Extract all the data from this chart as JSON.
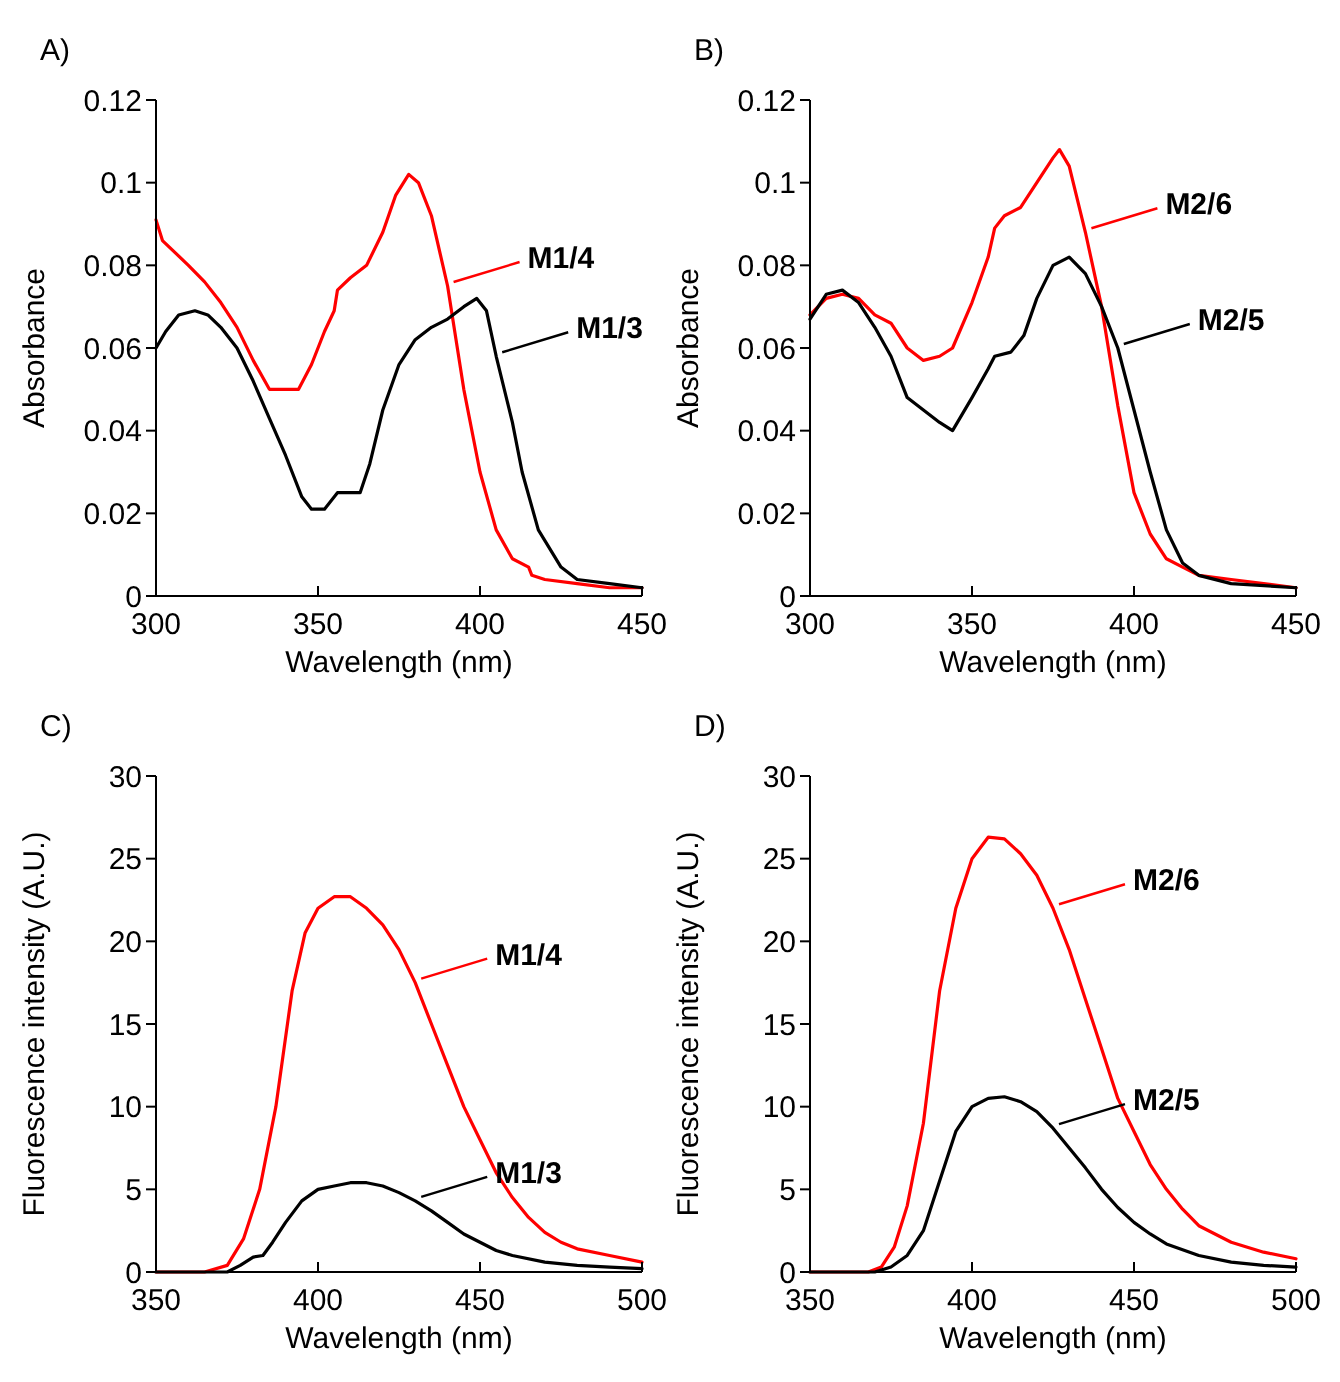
{
  "chart_data": [
    {
      "type": "line",
      "title": "A)",
      "xlabel": "Wavelength (nm)",
      "ylabel": "Absorbance",
      "xlim": [
        300,
        450
      ],
      "xticks": [
        300,
        350,
        400,
        450
      ],
      "ylim": [
        0,
        0.12
      ],
      "yticks": [
        0,
        0.02,
        0.04,
        0.06,
        0.08,
        {
          "value": 0.1,
          "label": "0.1"
        },
        0.12
      ],
      "grid": false,
      "legend": "right",
      "series": [
        {
          "name": "M1/4",
          "color": "#ff0000",
          "x": [
            300,
            302,
            310,
            315,
            320,
            325,
            330,
            335,
            340,
            344,
            348,
            352,
            355,
            356,
            360,
            365,
            370,
            374,
            378,
            381,
            385,
            390,
            395,
            400,
            405,
            410,
            415,
            416,
            420,
            430,
            440,
            450
          ],
          "values": [
            0.091,
            0.086,
            0.08,
            0.076,
            0.071,
            0.065,
            0.057,
            0.05,
            0.05,
            0.05,
            0.056,
            0.064,
            0.069,
            0.074,
            0.077,
            0.08,
            0.088,
            0.097,
            0.102,
            0.1,
            0.092,
            0.075,
            0.05,
            0.03,
            0.016,
            0.009,
            0.007,
            0.005,
            0.004,
            0.003,
            0.002,
            0.002
          ]
        },
        {
          "name": "M1/3",
          "color": "#000000",
          "x": [
            300,
            303,
            307,
            312,
            316,
            320,
            325,
            330,
            335,
            340,
            345,
            348,
            352,
            356,
            360,
            363,
            366,
            370,
            375,
            380,
            385,
            390,
            395,
            399,
            402,
            405,
            410,
            413,
            418,
            425,
            430,
            440,
            450
          ],
          "values": [
            0.06,
            0.064,
            0.068,
            0.069,
            0.068,
            0.065,
            0.06,
            0.052,
            0.043,
            0.034,
            0.024,
            0.021,
            0.021,
            0.025,
            0.025,
            0.025,
            0.032,
            0.045,
            0.056,
            0.062,
            0.065,
            0.067,
            0.07,
            0.072,
            0.069,
            0.058,
            0.042,
            0.03,
            0.016,
            0.007,
            0.004,
            0.003,
            0.002
          ]
        }
      ]
    },
    {
      "type": "line",
      "title": "B)",
      "xlabel": "Wavelength (nm)",
      "ylabel": "Absorbance",
      "xlim": [
        300,
        450
      ],
      "xticks": [
        300,
        350,
        400,
        450
      ],
      "ylim": [
        0,
        0.12
      ],
      "yticks": [
        0,
        0.02,
        0.04,
        0.06,
        0.08,
        {
          "value": 0.1,
          "label": "0.1"
        },
        0.12
      ],
      "grid": false,
      "legend": "right",
      "series": [
        {
          "name": "M2/6",
          "color": "#ff0000",
          "x": [
            300,
            305,
            310,
            315,
            320,
            325,
            330,
            335,
            340,
            344,
            350,
            355,
            357,
            360,
            365,
            370,
            375,
            377,
            380,
            385,
            390,
            395,
            400,
            405,
            410,
            415,
            420,
            430,
            450
          ],
          "values": [
            0.068,
            0.072,
            0.073,
            0.072,
            0.068,
            0.066,
            0.06,
            0.057,
            0.058,
            0.06,
            0.071,
            0.082,
            0.089,
            0.092,
            0.094,
            0.1,
            0.106,
            0.108,
            0.104,
            0.088,
            0.07,
            0.046,
            0.025,
            0.015,
            0.009,
            0.007,
            0.005,
            0.004,
            0.002
          ]
        },
        {
          "name": "M2/5",
          "color": "#000000",
          "x": [
            300,
            305,
            310,
            315,
            320,
            325,
            330,
            335,
            340,
            344,
            350,
            355,
            357,
            362,
            366,
            370,
            375,
            380,
            385,
            390,
            395,
            400,
            405,
            410,
            415,
            420,
            430,
            450
          ],
          "values": [
            0.067,
            0.073,
            0.074,
            0.071,
            0.065,
            0.058,
            0.048,
            0.045,
            0.042,
            0.04,
            0.048,
            0.055,
            0.058,
            0.059,
            0.063,
            0.072,
            0.08,
            0.082,
            0.078,
            0.07,
            0.06,
            0.045,
            0.03,
            0.016,
            0.008,
            0.005,
            0.003,
            0.002
          ]
        }
      ]
    },
    {
      "type": "line",
      "title": "C)",
      "xlabel": "Wavelength (nm)",
      "ylabel": "Fluorescence intensity (A.U.)",
      "xlim": [
        350,
        500
      ],
      "xticks": [
        350,
        400,
        450,
        500
      ],
      "ylim": [
        0,
        30
      ],
      "yticks": [
        0,
        5,
        10,
        15,
        20,
        25,
        30
      ],
      "grid": false,
      "legend": "right",
      "series": [
        {
          "name": "M1/4",
          "color": "#ff0000",
          "x": [
            350,
            365,
            372,
            377,
            382,
            387,
            392,
            396,
            400,
            405,
            410,
            415,
            420,
            425,
            430,
            435,
            440,
            445,
            450,
            455,
            460,
            465,
            470,
            475,
            480,
            490,
            500
          ],
          "values": [
            0,
            0,
            0.4,
            2,
            5,
            10,
            17,
            20.5,
            22,
            22.7,
            22.7,
            22,
            21,
            19.5,
            17.5,
            15,
            12.5,
            10,
            8,
            6,
            4.5,
            3.3,
            2.4,
            1.8,
            1.4,
            1,
            0.6
          ]
        },
        {
          "name": "M1/3",
          "color": "#000000",
          "x": [
            350,
            372,
            376,
            380,
            383,
            386,
            390,
            395,
            400,
            405,
            410,
            415,
            420,
            425,
            430,
            435,
            440,
            445,
            450,
            455,
            460,
            470,
            480,
            490,
            500
          ],
          "values": [
            0,
            0,
            0.4,
            0.9,
            1,
            1.8,
            3,
            4.3,
            5,
            5.2,
            5.4,
            5.4,
            5.2,
            4.8,
            4.3,
            3.7,
            3,
            2.3,
            1.8,
            1.3,
            1,
            0.6,
            0.4,
            0.3,
            0.2
          ]
        }
      ]
    },
    {
      "type": "line",
      "title": "D)",
      "xlabel": "Wavelength (nm)",
      "ylabel": "Fluorescence intensity (A.U.)",
      "xlim": [
        350,
        500
      ],
      "xticks": [
        350,
        400,
        450,
        500
      ],
      "ylim": [
        0,
        30
      ],
      "yticks": [
        0,
        5,
        10,
        15,
        20,
        25,
        30
      ],
      "grid": false,
      "legend": "right",
      "series": [
        {
          "name": "M2/6",
          "color": "#ff0000",
          "x": [
            350,
            368,
            372,
            376,
            380,
            385,
            390,
            395,
            400,
            405,
            410,
            415,
            420,
            425,
            430,
            435,
            440,
            445,
            450,
            455,
            460,
            465,
            470,
            480,
            490,
            500
          ],
          "values": [
            0,
            0,
            0.3,
            1.5,
            4,
            9,
            17,
            22,
            25,
            26.3,
            26.2,
            25.3,
            24,
            22,
            19.5,
            16.5,
            13.5,
            10.5,
            8.5,
            6.5,
            5,
            3.8,
            2.8,
            1.8,
            1.2,
            0.8
          ]
        },
        {
          "name": "M2/5",
          "color": "#000000",
          "x": [
            350,
            370,
            375,
            380,
            385,
            390,
            395,
            400,
            405,
            410,
            415,
            420,
            425,
            430,
            435,
            440,
            445,
            450,
            455,
            460,
            470,
            480,
            490,
            500
          ],
          "values": [
            0,
            0,
            0.3,
            1,
            2.5,
            5.5,
            8.5,
            10,
            10.5,
            10.6,
            10.3,
            9.7,
            8.7,
            7.5,
            6.3,
            5,
            3.9,
            3,
            2.3,
            1.7,
            1,
            0.6,
            0.4,
            0.3
          ]
        }
      ]
    }
  ]
}
